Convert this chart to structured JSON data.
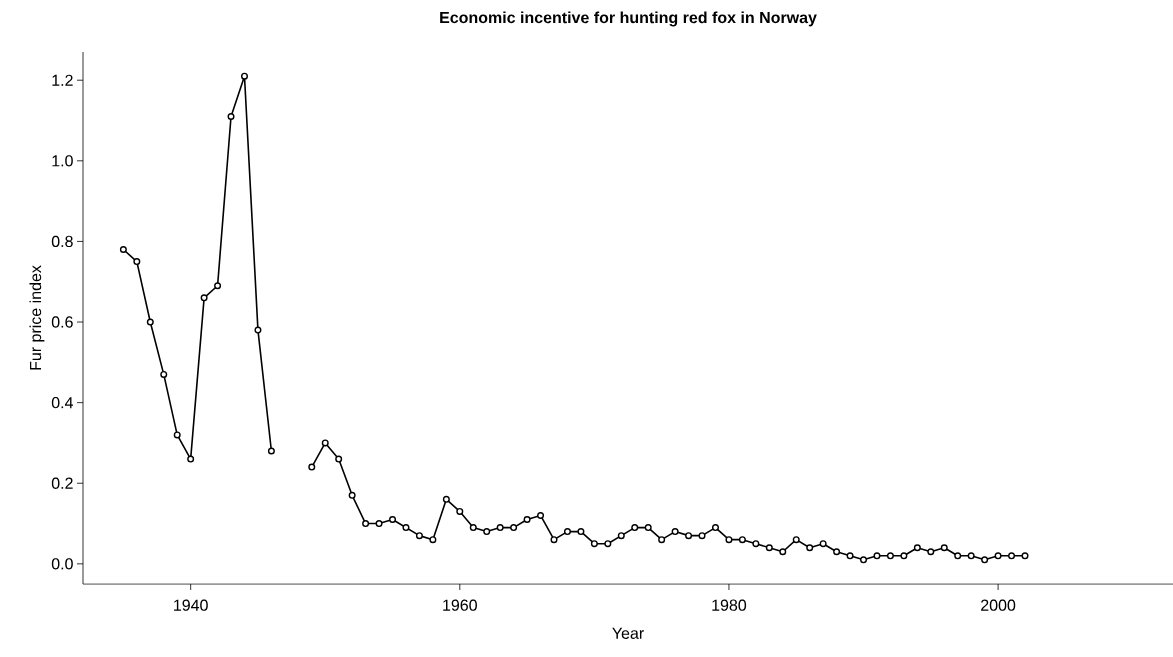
{
  "chart_data": {
    "type": "line",
    "title": "Economic incentive for hunting red fox in Norway",
    "xlabel": "Year",
    "ylabel": "Fur price index",
    "x": [
      1935,
      1936,
      1937,
      1938,
      1939,
      1940,
      1941,
      1942,
      1943,
      1944,
      1945,
      1946,
      1947,
      1948,
      1949,
      1950,
      1951,
      1952,
      1953,
      1954,
      1955,
      1956,
      1957,
      1958,
      1959,
      1960,
      1961,
      1962,
      1963,
      1964,
      1965,
      1966,
      1967,
      1968,
      1969,
      1970,
      1971,
      1972,
      1973,
      1974,
      1975,
      1976,
      1977,
      1978,
      1979,
      1980,
      1981,
      1982,
      1983,
      1984,
      1985,
      1986,
      1987,
      1988,
      1989,
      1990,
      1991,
      1992,
      1993,
      1994,
      1995,
      1996,
      1997,
      1998,
      1999,
      2000,
      2001,
      2002
    ],
    "series": [
      {
        "color": "#000000",
        "values": [
          0.78,
          0.75,
          0.6,
          0.47,
          0.32,
          0.26,
          0.66,
          0.69,
          1.11,
          1.21,
          0.58,
          0.28,
          null,
          null,
          0.24,
          0.3,
          0.26,
          0.17,
          0.1,
          0.1,
          0.11,
          0.09,
          0.07,
          0.06,
          0.16,
          0.13,
          0.09,
          0.08,
          0.09,
          0.09,
          0.11,
          0.12,
          0.06,
          0.08,
          0.08,
          0.05,
          0.05,
          0.07,
          0.09,
          0.09,
          0.06,
          0.08,
          0.07,
          0.07,
          0.09,
          0.06,
          0.06,
          0.05,
          0.04,
          0.03,
          0.06,
          0.04,
          0.05,
          0.03,
          0.02,
          0.01,
          0.02,
          0.02,
          0.02,
          0.04,
          0.03,
          0.04,
          0.02,
          0.02,
          0.01,
          0.02,
          0.02,
          0.02
        ]
      }
    ],
    "xlim": [
      1932,
      2013
    ],
    "ylim": [
      -0.05,
      1.27
    ],
    "xticks": [
      1940,
      1960,
      1980,
      2000
    ],
    "yticks": [
      {
        "value": 0,
        "label": "0.0"
      },
      {
        "value": 0.2,
        "label": "0.2"
      },
      {
        "value": 0.4,
        "label": "0.4"
      },
      {
        "value": 0.6,
        "label": "0.6"
      },
      {
        "value": 0.8,
        "label": "0.8"
      },
      {
        "value": 1.0,
        "label": "1.0"
      },
      {
        "value": 1.2,
        "label": "1.2"
      }
    ],
    "marker": "circle",
    "line_style": "solid"
  }
}
